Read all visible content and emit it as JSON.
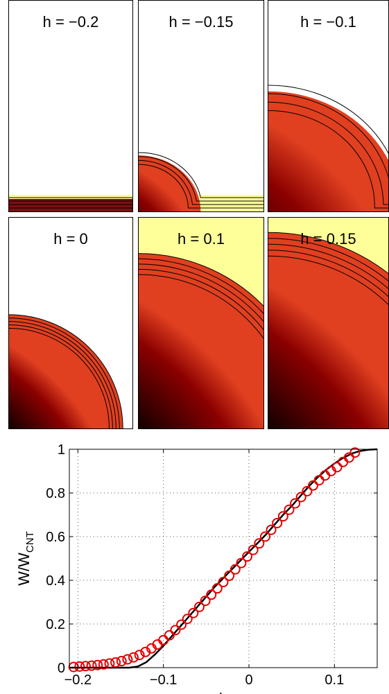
{
  "panels": [
    {
      "label": "h = −0.2",
      "h": -0.2,
      "shape": "film",
      "size": 0.0
    },
    {
      "label": "h = −0.15",
      "h": -0.15,
      "shape": "film",
      "size": 0.28
    },
    {
      "label": "h = −0.1",
      "h": -0.1,
      "shape": "film",
      "size": 0.6
    },
    {
      "label": "h = 0",
      "h": 0,
      "shape": "droplet",
      "size": 0.54
    },
    {
      "label": "h = 0.1",
      "h": 0.1,
      "shape": "droplet",
      "size": 0.83
    },
    {
      "label": "h = 0.15",
      "h": 0.15,
      "shape": "droplet",
      "size": 0.93
    }
  ],
  "colors": {
    "core": "#1a0000",
    "mid": "#8b0000",
    "edge": "#ffff99",
    "contour": "#000000",
    "marker": "#e00000",
    "line": "#000000",
    "grid": "#555555"
  },
  "chart_data": {
    "type": "line",
    "xlabel": "h",
    "ylabel_main": "W/W",
    "ylabel_sub": "CNT",
    "xlim": [
      -0.21,
      0.15
    ],
    "ylim": [
      0,
      1
    ],
    "x_ticks": [
      -0.2,
      -0.1,
      0,
      0.1
    ],
    "x_tick_labels": [
      "−0.2",
      "−0.1",
      "0",
      "0.1"
    ],
    "y_ticks": [
      0,
      0.2,
      0.4,
      0.6,
      0.8,
      1
    ],
    "y_tick_labels": [
      "0",
      "0.2",
      "0.4",
      "0.6",
      "0.8",
      "1"
    ],
    "grid": true,
    "series": [
      {
        "style": "line",
        "x": [
          -0.21,
          -0.18,
          -0.15,
          -0.14,
          -0.13,
          -0.12,
          -0.11,
          -0.1,
          -0.09,
          -0.08,
          -0.07,
          -0.06,
          -0.05,
          -0.04,
          -0.03,
          -0.02,
          -0.01,
          0,
          0.01,
          0.02,
          0.03,
          0.04,
          0.05,
          0.06,
          0.07,
          0.08,
          0.09,
          0.1,
          0.11,
          0.12,
          0.13,
          0.14,
          0.15
        ],
        "y": [
          0,
          0,
          0,
          0,
          0.005,
          0.025,
          0.06,
          0.1,
          0.145,
          0.19,
          0.235,
          0.28,
          0.325,
          0.37,
          0.41,
          0.45,
          0.49,
          0.53,
          0.57,
          0.61,
          0.655,
          0.7,
          0.74,
          0.785,
          0.83,
          0.87,
          0.905,
          0.935,
          0.96,
          0.98,
          0.992,
          0.998,
          1
        ]
      },
      {
        "style": "markers",
        "x": [
          -0.205,
          -0.198,
          -0.191,
          -0.184,
          -0.177,
          -0.17,
          -0.163,
          -0.156,
          -0.149,
          -0.142,
          -0.135,
          -0.128,
          -0.121,
          -0.114,
          -0.107,
          -0.1,
          -0.093,
          -0.086,
          -0.079,
          -0.072,
          -0.065,
          -0.058,
          -0.051,
          -0.044,
          -0.037,
          -0.03,
          -0.023,
          -0.016,
          -0.009,
          -0.002,
          0.005,
          0.012,
          0.019,
          0.026,
          0.033,
          0.04,
          0.047,
          0.054,
          0.061,
          0.068,
          0.075,
          0.082,
          0.089,
          0.096,
          0.103,
          0.11,
          0.117,
          0.124
        ],
        "y": [
          0.003,
          0.005,
          0.007,
          0.009,
          0.012,
          0.015,
          0.019,
          0.024,
          0.03,
          0.038,
          0.047,
          0.058,
          0.072,
          0.088,
          0.106,
          0.126,
          0.148,
          0.172,
          0.197,
          0.223,
          0.25,
          0.278,
          0.306,
          0.334,
          0.363,
          0.392,
          0.421,
          0.45,
          0.479,
          0.509,
          0.539,
          0.569,
          0.6,
          0.631,
          0.662,
          0.693,
          0.723,
          0.752,
          0.781,
          0.808,
          0.834,
          0.858,
          0.88,
          0.9,
          0.918,
          0.942,
          0.962,
          0.985
        ]
      }
    ]
  }
}
